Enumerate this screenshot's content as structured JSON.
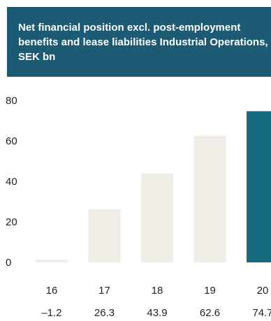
{
  "header": {
    "title": "Net financial position excl. post-employment benefits and lease liabilities Industrial Operations, SEK bn"
  },
  "chart_data": {
    "type": "bar",
    "title": "Net financial position excl. post-employment benefits and lease liabilities Industrial Operations, SEK bn",
    "categories": [
      "16",
      "17",
      "18",
      "19",
      "20"
    ],
    "values": [
      -1.2,
      26.3,
      43.9,
      62.6,
      74.7
    ],
    "value_labels": [
      "–1.2",
      "26.3",
      "43.9",
      "62.6",
      "74.7"
    ],
    "yticks": [
      0,
      20,
      40,
      60,
      80
    ],
    "ylim": [
      0,
      80
    ],
    "grid": false,
    "legend": "none",
    "colors": {
      "bar": "#efede6",
      "highlight": "#166b7e",
      "header_bg": "#1c5b73"
    },
    "highlight_index": 4
  }
}
